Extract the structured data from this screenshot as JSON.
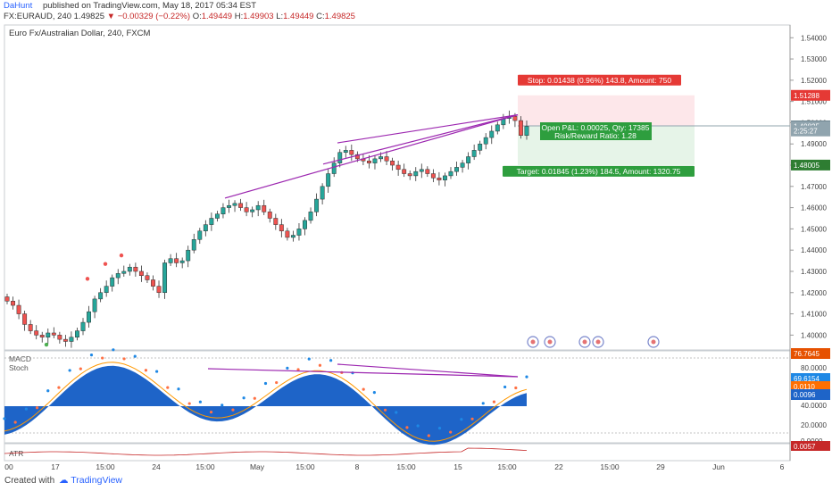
{
  "header": {
    "author": "DaHunt",
    "published": "published on TradingView.com, May 18, 2017 05:34 EST",
    "symbol": "FX:EURAUD, 240",
    "last": "1.49825",
    "change": "−0.00329 (−0.22%)",
    "o_label": "O:",
    "o": "1.49449",
    "h_label": "H:",
    "h": "1.49903",
    "l_label": "L:",
    "l": "1.49449",
    "c_label": "C:",
    "c": "1.49825"
  },
  "chart_title": "Euro Fx/Australian Dollar, 240, FXCM",
  "chart_data": {
    "type": "candlestick",
    "y_ticks": [
      "1.54000",
      "1.53000",
      "1.52000",
      "1.51000",
      "1.50000",
      "1.49000",
      "1.48000",
      "1.47000",
      "1.46000",
      "1.45000",
      "1.44000",
      "1.43000",
      "1.42000",
      "1.41000",
      "1.40000"
    ],
    "y_range": [
      1.393,
      1.546
    ],
    "x_ticks": [
      "00",
      "17",
      "15:00",
      "24",
      "15:00",
      "May",
      "15:00",
      "8",
      "15:00",
      "15",
      "15:00",
      "22",
      "15:00",
      "29",
      "Jun",
      "6"
    ],
    "price_labels": [
      {
        "text": "1.51288",
        "value": 1.51288,
        "color": "#e53935"
      },
      {
        "text": "1.49850",
        "value": 1.4985,
        "color": "#546e7a"
      },
      {
        "text": "1.49825",
        "value": 1.49825,
        "color": "#90a4ae"
      },
      {
        "text": "2:25:27",
        "value": 1.4961,
        "color": "#90a4ae"
      },
      {
        "text": "1.48005",
        "value": 1.48005,
        "color": "#2e7d32"
      }
    ],
    "position": {
      "stop_label": "Stop: 0.01438 (0.96%) 143.8, Amount: 750",
      "pnl_label": "Open P&L: 0.00025, Qty: 17385",
      "ratio_label": "Risk/Reward Ratio: 1.28",
      "target_label": "Target: 0.01845 (1.23%) 184.5, Amount: 1320.75",
      "entry": 1.4985,
      "stop": 1.51288,
      "target": 1.48005
    },
    "close_path": [
      1.416,
      1.414,
      1.41,
      1.405,
      1.402,
      1.4,
      1.399,
      1.401,
      1.4,
      1.398,
      1.397,
      1.399,
      1.402,
      1.406,
      1.411,
      1.417,
      1.42,
      1.423,
      1.427,
      1.429,
      1.43,
      1.432,
      1.43,
      1.428,
      1.426,
      1.423,
      1.42,
      1.434,
      1.436,
      1.434,
      1.435,
      1.44,
      1.445,
      1.449,
      1.452,
      1.455,
      1.457,
      1.46,
      1.461,
      1.462,
      1.46,
      1.458,
      1.459,
      1.461,
      1.458,
      1.455,
      1.452,
      1.449,
      1.446,
      1.447,
      1.45,
      1.454,
      1.458,
      1.464,
      1.47,
      1.476,
      1.481,
      1.486,
      1.487,
      1.485,
      1.483,
      1.482,
      1.481,
      1.483,
      1.484,
      1.482,
      1.48,
      1.478,
      1.476,
      1.475,
      1.477,
      1.478,
      1.476,
      1.474,
      1.473,
      1.475,
      1.477,
      1.479,
      1.481,
      1.484,
      1.487,
      1.49,
      1.493,
      1.496,
      1.499,
      1.502,
      1.503,
      1.501,
      1.494,
      1.4983
    ],
    "indicators": {
      "macd_label": "MACD",
      "stoch_label": "Stoch",
      "atr_label": "ATR",
      "stoch_ticks": [
        "80.0000",
        "40.0000",
        "20.0000",
        "0.0000"
      ],
      "macd_values": [
        "76.7645",
        "69.6154",
        "0.0110",
        "0.0096"
      ],
      "atr_value": "0.0057"
    }
  },
  "footer": {
    "created_with": "Created with",
    "brand": "TradingView"
  },
  "colors": {
    "bull": "#26a69a",
    "bear": "#ef5350",
    "trend": "#9c27b0",
    "macd_fill": "#1e64c8",
    "stop_zone": "#fde7ea",
    "target_zone": "#e6f4e8"
  }
}
